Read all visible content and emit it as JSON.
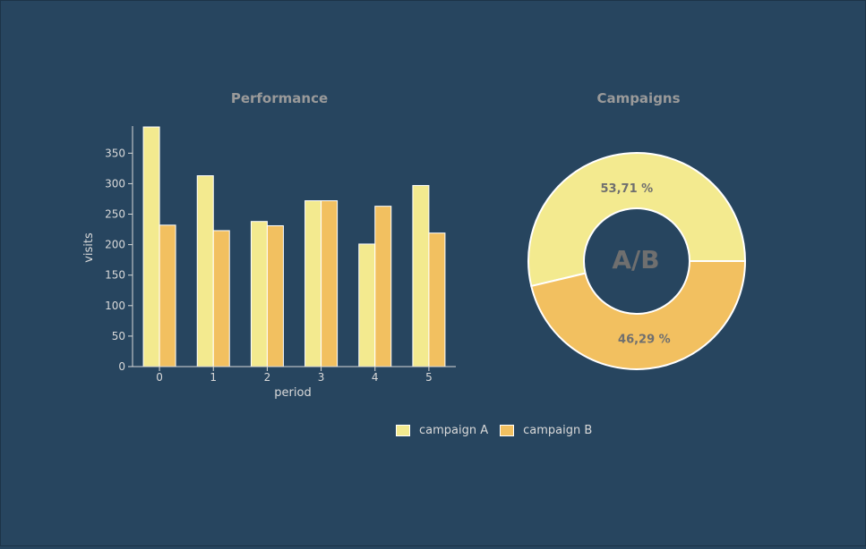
{
  "colors": {
    "background": "#27455f",
    "campaign_a": "#f3ea8f",
    "campaign_b": "#f2c060",
    "title": "#9a9a9a",
    "axis_text": "#d9d9d9",
    "center_text": "#6f6f6f",
    "pie_label": "#6f6f6f"
  },
  "chart_data": [
    {
      "type": "bar",
      "title": "Performance",
      "xlabel": "period",
      "ylabel": "visits",
      "categories": [
        "0",
        "1",
        "2",
        "3",
        "4",
        "5"
      ],
      "ylim": [
        0,
        393
      ],
      "yticks": [
        "0",
        "50",
        "100",
        "150",
        "200",
        "250",
        "300",
        "350"
      ],
      "grid": false,
      "series": [
        {
          "name": "campaign A",
          "values": [
            393,
            313,
            238,
            272,
            201,
            297
          ]
        },
        {
          "name": "campaign B",
          "values": [
            232,
            223,
            231,
            272,
            263,
            219
          ]
        }
      ]
    },
    {
      "type": "pie",
      "title": "Campaigns",
      "center_label": "A/B",
      "slices": [
        {
          "name": "campaign A",
          "value": 53.71,
          "label": "53,71 %"
        },
        {
          "name": "campaign B",
          "value": 46.29,
          "label": "46,29 %"
        }
      ]
    }
  ],
  "legend": {
    "placement": "bottom-center",
    "items": [
      {
        "label": "campaign A"
      },
      {
        "label": "campaign B"
      }
    ]
  }
}
